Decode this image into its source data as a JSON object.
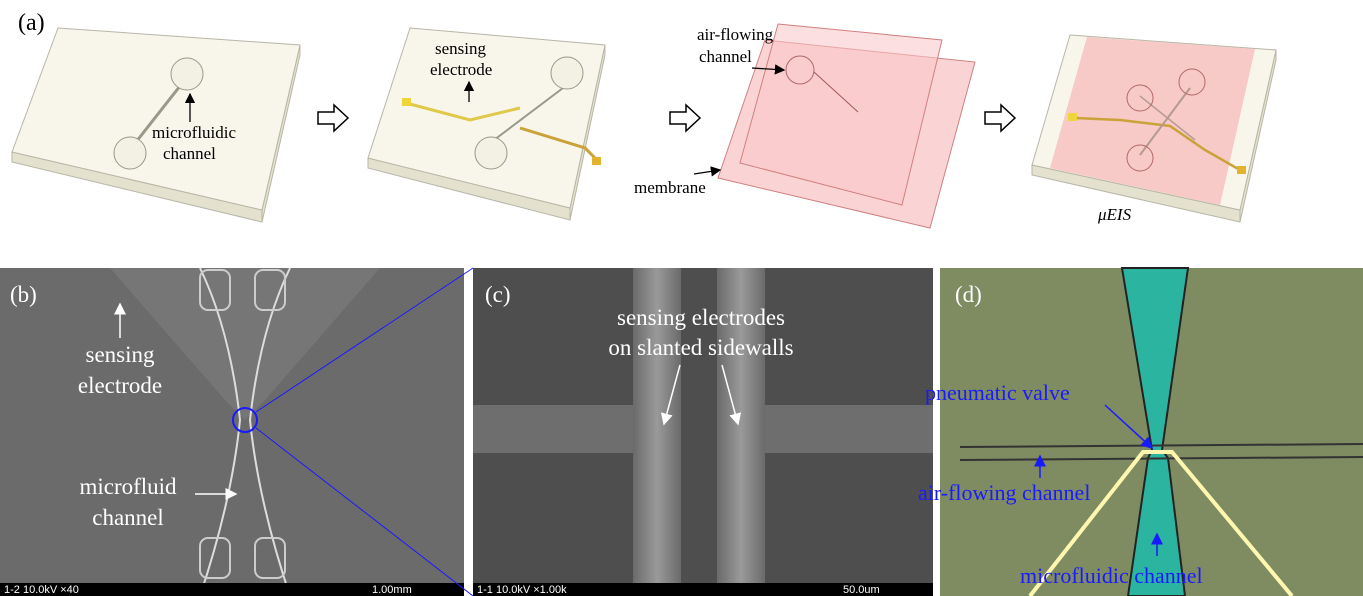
{
  "panel_a": {
    "label": "(a)",
    "step1": {
      "microfluidic_channel": [
        "microfluidic",
        "channel"
      ]
    },
    "step2": {
      "sensing_electrode": [
        "sensing",
        "electrode"
      ]
    },
    "step3": {
      "air_flowing_channel": [
        "air-flowing",
        "channel"
      ],
      "membrane": "membrane"
    },
    "step4": {
      "device_name": "μEIS"
    }
  },
  "panel_b": {
    "label": "(b)",
    "sensing_electrode": [
      "sensing",
      "electrode"
    ],
    "microfluid_channel": [
      "microfluid",
      "channel"
    ],
    "scale_info": "1-2 10.0kV ×40",
    "scale_bar": "1.00mm"
  },
  "panel_c": {
    "label": "(c)",
    "annotation": [
      "sensing electrodes",
      "on slanted sidewalls"
    ],
    "scale_info": "1-1 10.0kV ×1.00k",
    "scale_bar": "50.0um"
  },
  "panel_d": {
    "label": "(d)",
    "pneumatic_valve": "pneumatic valve",
    "air_flowing_channel": "air-flowing channel",
    "microfluidic_channel": "microfluidic channel"
  }
}
